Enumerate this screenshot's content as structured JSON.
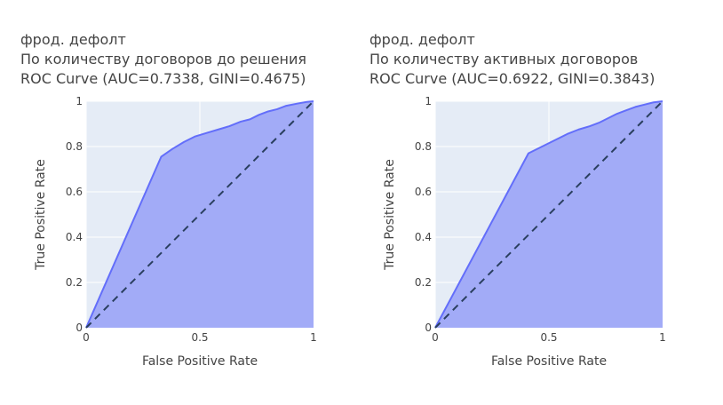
{
  "colors": {
    "plot_bg": "#E5ECF6",
    "grid": "#FFFFFF",
    "fill": "#A2ABF7",
    "line": "#636EFA",
    "diagonal": "#2A3F5F"
  },
  "chart_data": [
    {
      "type": "area",
      "title_lines": [
        "фрод. дефолт",
        "По количеству договоров до решения",
        "ROC Curve (AUC=0.7338, GINI=0.4675)"
      ],
      "xlabel": "False Positive Rate",
      "ylabel": "True Positive Rate",
      "xlim": [
        0,
        1
      ],
      "ylim": [
        0,
        1
      ],
      "x_ticks": [
        "0",
        "0.5",
        "1"
      ],
      "y_ticks": [
        "0",
        "0.2",
        "0.4",
        "0.6",
        "0.8",
        "1"
      ],
      "grid": true,
      "series": [
        {
          "x": [
            0,
            0.33,
            0.38,
            0.43,
            0.48,
            0.53,
            0.58,
            0.63,
            0.68,
            0.72,
            0.76,
            0.8,
            0.84,
            0.88,
            0.93,
            0.97,
            1.0
          ],
          "y": [
            0,
            0.755,
            0.79,
            0.82,
            0.845,
            0.86,
            0.875,
            0.89,
            0.91,
            0.92,
            0.94,
            0.955,
            0.965,
            0.98,
            0.99,
            0.997,
            1.0
          ]
        }
      ],
      "diagonal": {
        "x": [
          0,
          1
        ],
        "y": [
          0,
          1
        ]
      }
    },
    {
      "type": "area",
      "title_lines": [
        "фрод. дефолт",
        "По количеству активных договоров",
        "ROC Curve (AUC=0.6922, GINI=0.3843)"
      ],
      "xlabel": "False Positive Rate",
      "ylabel": "True Positive Rate",
      "xlim": [
        0,
        1
      ],
      "ylim": [
        0,
        1
      ],
      "x_ticks": [
        "0",
        "0.5",
        "1"
      ],
      "y_ticks": [
        "0",
        "0.2",
        "0.4",
        "0.6",
        "0.8",
        "1"
      ],
      "grid": true,
      "series": [
        {
          "x": [
            0,
            0.41,
            0.46,
            0.52,
            0.58,
            0.63,
            0.68,
            0.72,
            0.76,
            0.8,
            0.84,
            0.88,
            0.92,
            0.96,
            1.0
          ],
          "y": [
            0,
            0.77,
            0.795,
            0.825,
            0.855,
            0.875,
            0.89,
            0.905,
            0.925,
            0.945,
            0.96,
            0.975,
            0.985,
            0.995,
            1.0
          ]
        }
      ],
      "diagonal": {
        "x": [
          0,
          1
        ],
        "y": [
          0,
          1
        ]
      }
    }
  ]
}
